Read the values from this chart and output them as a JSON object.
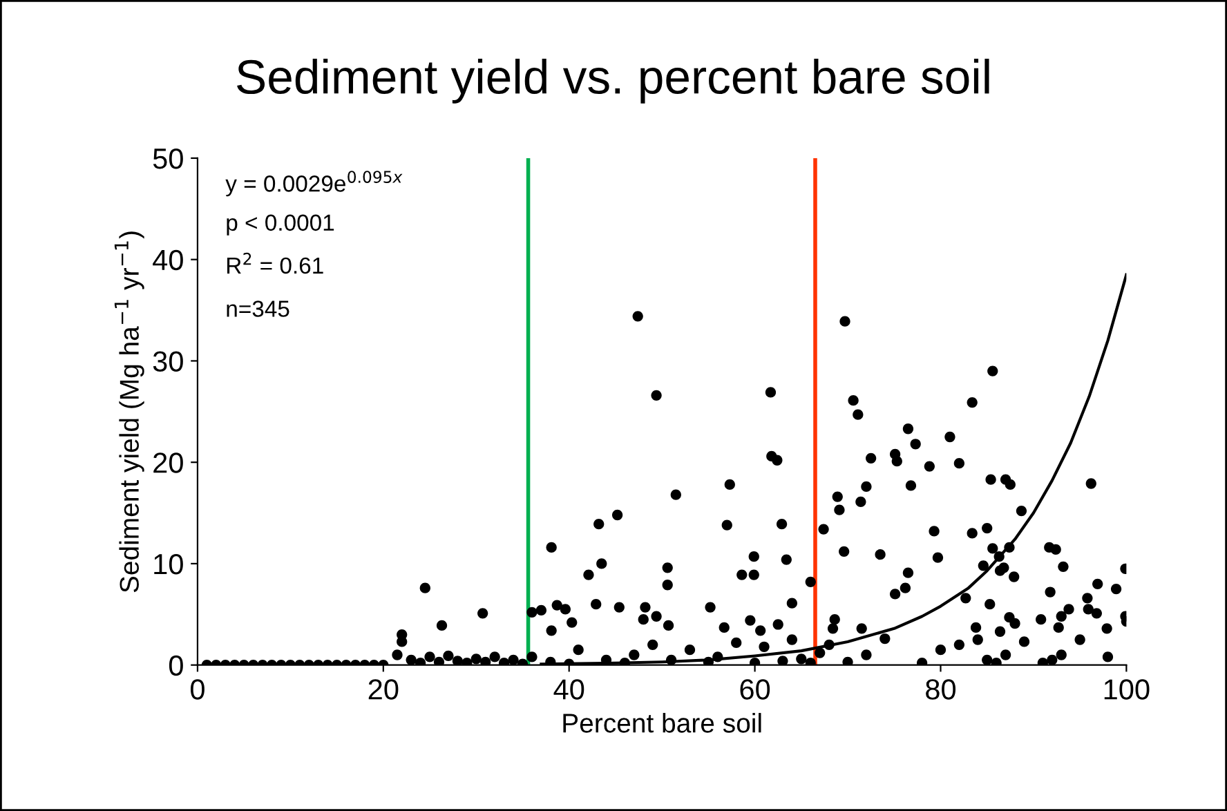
{
  "chart_data": {
    "type": "scatter",
    "title": "Sediment yield vs. percent bare soil",
    "xlabel": "Percent bare soil",
    "ylabel": "Sediment yield (Mg ha$^{−1}$ yr$^{−1}$)",
    "annotations": [
      "y = 0.0029e$^{0.095x}$",
      "p < 0.0001",
      "R$^{2}$ = 0.61",
      "n=345"
    ],
    "xlim": [
      0,
      100
    ],
    "xticks": [
      0,
      20,
      40,
      60,
      80,
      100
    ],
    "ylim": [
      0,
      50
    ],
    "yticks": [
      0,
      10,
      20,
      30,
      40,
      50
    ],
    "grid": false,
    "legend": false,
    "marker": "circle",
    "ref_lines": [
      {
        "axis": "x",
        "value": 35.6,
        "color": "#00b050"
      },
      {
        "axis": "x",
        "value": 66.5,
        "color": "#ff3300"
      }
    ],
    "series": [
      {
        "color": "#000000",
        "x": [
          47.4,
          49.4,
          61.7,
          61.8,
          62.4,
          51.5,
          57.3,
          45.2,
          43.2,
          57.0,
          62.9,
          38.1,
          67.4,
          43.5,
          42.1,
          50.6,
          50.6,
          59.9,
          58.6,
          59.9,
          63.4,
          66.0,
          36.0,
          37.0,
          38.7,
          39.6,
          42.9,
          45.4,
          48.2,
          55.2,
          64.0,
          40.3,
          48.0,
          49.4,
          50.7,
          59.5,
          62.5,
          38.1,
          56.7,
          60.6,
          69.7,
          85.6,
          70.6,
          71.1,
          83.4,
          76.5,
          81.0,
          77.3,
          72.5,
          75.1,
          75.3,
          78.8,
          82.0,
          85.4,
          87.0,
          87.5,
          96.2,
          72.0,
          76.8,
          68.9,
          69.1,
          71.4,
          88.7,
          79.3,
          83.4,
          85.0,
          69.6,
          73.5,
          79.7,
          85.6,
          86.3,
          87.4,
          91.7,
          92.4,
          93.2,
          99.9,
          84.6,
          86.4,
          86.8,
          87.9,
          76.5,
          76.2,
          75.1,
          91.8,
          96.9,
          95.8,
          98.9,
          82.7,
          85.3,
          93.8,
          93.0,
          95.9,
          96.8,
          99.9,
          87.4,
          88.0,
          90.8,
          92.7,
          97.9,
          83.8,
          86.4,
          68.6,
          68.4,
          71.5,
          24.5,
          26.3,
          30.7,
          22.0,
          1,
          2,
          3,
          4,
          5,
          6,
          7,
          8,
          9,
          10,
          11,
          12,
          13,
          14,
          15,
          16,
          17,
          18,
          19,
          20,
          21.5,
          22,
          23,
          24,
          25,
          26,
          27,
          28,
          29,
          30,
          31,
          32,
          33,
          34,
          35,
          36,
          38,
          40,
          41,
          44,
          46,
          47,
          49,
          51,
          53,
          55,
          56,
          58,
          60,
          61,
          63,
          64,
          65,
          66,
          67,
          68,
          70,
          72,
          74,
          78,
          80,
          82,
          84,
          85,
          86,
          87,
          89,
          91,
          92,
          93,
          95,
          98,
          100
        ],
        "values": [
          34.4,
          26.6,
          26.9,
          20.6,
          20.2,
          16.8,
          17.8,
          14.8,
          13.9,
          13.8,
          13.9,
          11.6,
          13.4,
          10.0,
          8.9,
          9.6,
          7.9,
          10.7,
          8.9,
          8.9,
          10.4,
          8.2,
          5.2,
          5.4,
          5.9,
          5.5,
          6.0,
          5.7,
          5.7,
          5.7,
          6.1,
          4.2,
          4.5,
          4.8,
          3.9,
          4.4,
          4.0,
          3.4,
          3.7,
          3.4,
          33.9,
          29.0,
          26.1,
          24.7,
          25.9,
          23.3,
          22.5,
          21.8,
          20.4,
          20.8,
          20.1,
          19.6,
          19.9,
          18.3,
          18.3,
          17.8,
          17.9,
          17.6,
          17.7,
          16.6,
          15.3,
          16.1,
          15.2,
          13.2,
          13.0,
          13.5,
          11.2,
          10.9,
          10.6,
          11.5,
          10.7,
          11.6,
          11.6,
          11.4,
          9.7,
          9.5,
          9.8,
          9.3,
          9.6,
          8.7,
          9.1,
          7.6,
          7.0,
          7.2,
          8.0,
          6.6,
          7.5,
          6.6,
          6.0,
          5.5,
          4.8,
          5.5,
          5.1,
          4.8,
          4.7,
          4.1,
          4.5,
          3.7,
          3.6,
          3.7,
          3.3,
          4.5,
          3.6,
          3.6,
          7.6,
          3.9,
          5.1,
          3.0,
          0,
          0,
          0,
          0,
          0,
          0,
          0,
          0,
          0,
          0,
          0,
          0,
          0,
          0,
          0,
          0,
          0,
          0,
          0,
          0,
          1.0,
          2.3,
          0.5,
          0.2,
          0.8,
          0.3,
          0.9,
          0.4,
          0.2,
          0.6,
          0.3,
          0.8,
          0.2,
          0.5,
          0.1,
          0.8,
          0.3,
          0.1,
          1.5,
          0.5,
          0.2,
          1.0,
          2.0,
          0.5,
          1.5,
          0.3,
          0.8,
          2.2,
          0.2,
          1.8,
          0.4,
          2.5,
          0.6,
          0.2,
          1.2,
          2.0,
          0.3,
          1.0,
          2.6,
          0.2,
          1.5,
          2.0,
          2.5,
          0.5,
          0.2,
          1.0,
          2.3,
          0.2,
          0.5,
          1.0,
          2.5,
          0.8,
          4.3
        ]
      },
      {
        "type": "line",
        "color": "#000000",
        "marker": "none",
        "x": [
          37,
          45,
          50,
          55,
          60,
          65,
          70,
          75,
          78,
          80,
          83,
          85,
          88,
          90,
          92,
          94,
          96,
          98,
          100
        ],
        "values": [
          0.1,
          0.2,
          0.3,
          0.5,
          0.9,
          1.4,
          2.3,
          3.6,
          4.8,
          5.8,
          7.6,
          9.3,
          12.4,
          15.0,
          18.2,
          21.9,
          26.5,
          32.0,
          38.5
        ]
      }
    ]
  }
}
